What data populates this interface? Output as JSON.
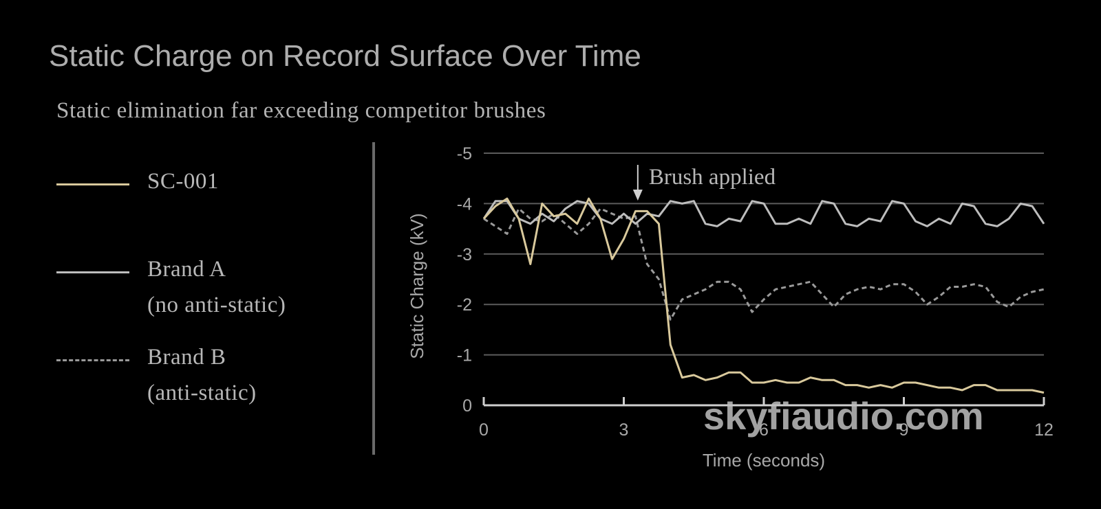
{
  "chart_data": {
    "type": "line",
    "title": "Static Charge on Record Surface Over Time",
    "subtitle": "Static elimination far exceeding competitor brushes",
    "xlabel": "Time (seconds)",
    "ylabel": "Static Charge (kV)",
    "annotation": {
      "text": "Brush applied",
      "x": 3.3
    },
    "watermark": "skyfiaudio.com",
    "x": [
      0,
      0.25,
      0.5,
      0.75,
      1,
      1.25,
      1.5,
      1.75,
      2,
      2.25,
      2.5,
      2.75,
      3,
      3.25,
      3.5,
      3.75,
      4,
      4.25,
      4.5,
      4.75,
      5,
      5.25,
      5.5,
      5.75,
      6,
      6.25,
      6.5,
      6.75,
      7,
      7.25,
      7.5,
      7.75,
      8,
      8.25,
      8.5,
      8.75,
      9,
      9.25,
      9.5,
      9.75,
      10,
      10.25,
      10.5,
      10.75,
      11,
      11.25,
      11.5,
      11.75,
      12
    ],
    "series": [
      {
        "name": "SC-001",
        "color": "#d9c99c",
        "style": "solid",
        "values": [
          -3.7,
          -3.95,
          -4.1,
          -3.7,
          -2.8,
          -4.0,
          -3.75,
          -3.8,
          -3.6,
          -4.1,
          -3.7,
          -2.9,
          -3.3,
          -3.85,
          -3.85,
          -3.6,
          -1.2,
          -0.55,
          -0.6,
          -0.5,
          -0.55,
          -0.65,
          -0.65,
          -0.45,
          -0.45,
          -0.5,
          -0.45,
          -0.45,
          -0.55,
          -0.5,
          -0.5,
          -0.4,
          -0.4,
          -0.35,
          -0.4,
          -0.35,
          -0.45,
          -0.45,
          -0.4,
          -0.35,
          -0.35,
          -0.3,
          -0.4,
          -0.4,
          -0.3,
          -0.3,
          -0.3,
          -0.3,
          -0.25
        ]
      },
      {
        "name": "Brand A\n(no anti-static)",
        "color": "#bdbdbd",
        "style": "solid",
        "values": [
          -3.7,
          -4.05,
          -4.05,
          -3.7,
          -3.6,
          -3.8,
          -3.65,
          -3.9,
          -4.05,
          -4.0,
          -3.7,
          -3.6,
          -3.8,
          -3.6,
          -3.8,
          -3.75,
          -4.05,
          -4.0,
          -4.05,
          -3.6,
          -3.55,
          -3.7,
          -3.65,
          -4.05,
          -4.0,
          -3.6,
          -3.6,
          -3.7,
          -3.6,
          -4.05,
          -4.0,
          -3.6,
          -3.55,
          -3.7,
          -3.65,
          -4.05,
          -4.0,
          -3.65,
          -3.55,
          -3.7,
          -3.6,
          -4.0,
          -3.95,
          -3.6,
          -3.55,
          -3.7,
          -4.0,
          -3.95,
          -3.6
        ]
      },
      {
        "name": "Brand B\n(anti-static)",
        "color": "#9a9a9a",
        "style": "dashed",
        "values": [
          -3.7,
          -3.55,
          -3.4,
          -3.9,
          -3.7,
          -3.65,
          -3.8,
          -3.6,
          -3.4,
          -3.6,
          -3.9,
          -3.8,
          -3.7,
          -3.75,
          -2.8,
          -2.5,
          -1.7,
          -2.1,
          -2.2,
          -2.3,
          -2.45,
          -2.45,
          -2.3,
          -1.85,
          -2.1,
          -2.3,
          -2.35,
          -2.4,
          -2.45,
          -2.2,
          -1.95,
          -2.2,
          -2.3,
          -2.35,
          -2.3,
          -2.4,
          -2.4,
          -2.25,
          -2.0,
          -2.15,
          -2.35,
          -2.35,
          -2.4,
          -2.35,
          -2.05,
          -1.95,
          -2.15,
          -2.25,
          -2.3
        ]
      }
    ],
    "xlim": [
      0,
      12
    ],
    "xticks": [
      0,
      3,
      6,
      9,
      12
    ],
    "ylim": [
      0,
      -5
    ],
    "yticks": [
      0,
      -1,
      -2,
      -3,
      -4,
      -5
    ],
    "grid": true
  }
}
